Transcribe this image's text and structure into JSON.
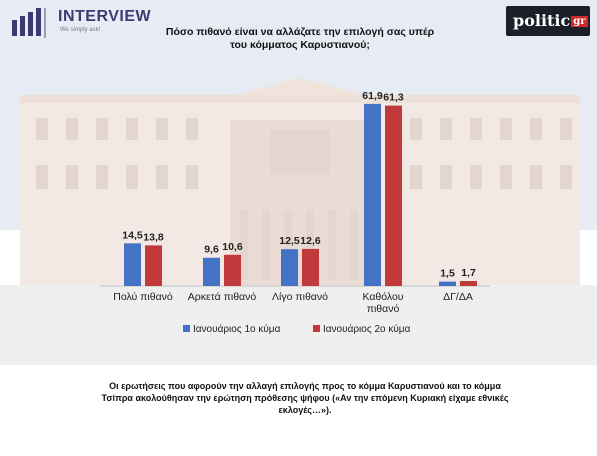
{
  "header": {
    "logo_left_name": "INTERVIEW",
    "logo_left_tagline": "We simply ask!",
    "logo_right_name": "politic",
    "logo_right_suffix": "gr"
  },
  "chart_data": {
    "type": "bar",
    "title": "Πόσο πιθανό είναι να αλλάζατε την επιλογή σας υπέρ του κόμματος Καρυστιανού;",
    "categories": [
      "Πολύ πιθανό",
      "Αρκετά πιθανό",
      "Λίγο πιθανό",
      "Καθόλου πιθανό",
      "ΔΓ/ΔΑ"
    ],
    "series": [
      {
        "name": "Ιανουάριος 1ο κύμα",
        "values": [
          14.5,
          9.6,
          12.5,
          61.9,
          1.5
        ],
        "labels": [
          "14,5",
          "9,6",
          "12,5",
          "61,9",
          "1,5"
        ],
        "color": "#4472c4"
      },
      {
        "name": "Ιανουάριος 2ο κύμα",
        "values": [
          13.8,
          10.6,
          12.6,
          61.3,
          1.7
        ],
        "labels": [
          "13,8",
          "10,6",
          "12,6",
          "61,3",
          "1,7"
        ],
        "color": "#c0393b"
      }
    ],
    "legend_position": "bottom",
    "grid": false,
    "ylim": [
      0,
      70
    ]
  },
  "footnote": "Οι ερωτήσεις που αφορούν την αλλαγή επιλογής προς το κόμμα Καρυστιανού και το κόμμα Τσίπρα ακολούθησαν την ερώτηση πρόθεσης ψήφου («Αν την επόμενη Κυριακή είχαμε εθνικές εκλογές…»)."
}
